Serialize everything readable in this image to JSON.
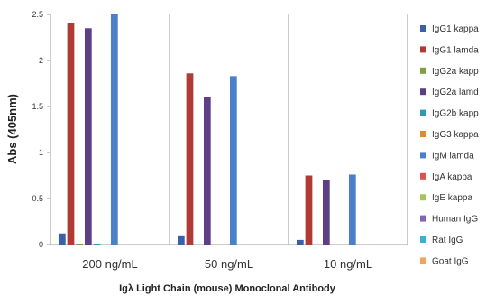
{
  "chart_data": {
    "type": "bar",
    "title": "",
    "xlabel": "Igλ Light Chain (mouse) Monoclonal Antibody",
    "ylabel": "Abs (405nm)",
    "ylim": [
      0,
      2.5
    ],
    "yticks": [
      "0",
      "0.5",
      "1",
      "1.5",
      "2",
      "2.5"
    ],
    "grid": "vertical separators between categories",
    "legend_position": "right",
    "categories": [
      "200 ng/mL",
      "50 ng/mL",
      "10 ng/mL"
    ],
    "series": [
      {
        "name": "IgG1 kappa",
        "color": "#3b5fa8",
        "values": [
          0.12,
          0.1,
          0.05
        ]
      },
      {
        "name": "IgG1 lamda",
        "color": "#b03a36",
        "values": [
          2.41,
          1.86,
          0.75
        ]
      },
      {
        "name": "IgG2a kapp",
        "color": "#7da043",
        "values": [
          0.01,
          0.0,
          0.0
        ]
      },
      {
        "name": "IgG2a lamd",
        "color": "#5d3f86",
        "values": [
          2.35,
          1.6,
          0.7
        ]
      },
      {
        "name": "IgG2b kapp",
        "color": "#2d9ab3",
        "values": [
          0.01,
          0.0,
          0.0
        ]
      },
      {
        "name": "IgG3 kappa",
        "color": "#e08a34",
        "values": [
          0.0,
          0.0,
          0.0
        ]
      },
      {
        "name": "IgM lamda",
        "color": "#4a7fc9",
        "values": [
          2.52,
          1.83,
          0.76
        ]
      },
      {
        "name": "IgA kappa",
        "color": "#d9534f",
        "values": [
          0.0,
          0.0,
          0.0
        ]
      },
      {
        "name": "IgE kappa",
        "color": "#a6c65a",
        "values": [
          0.0,
          0.0,
          0.0
        ]
      },
      {
        "name": "Human IgG",
        "color": "#8567b0",
        "values": [
          0.0,
          0.0,
          0.0
        ]
      },
      {
        "name": "Rat IgG",
        "color": "#37b3d0",
        "values": [
          0.0,
          0.0,
          0.0
        ]
      },
      {
        "name": "Goat IgG",
        "color": "#f4a460",
        "values": [
          0.0,
          0.0,
          0.0
        ]
      }
    ]
  }
}
